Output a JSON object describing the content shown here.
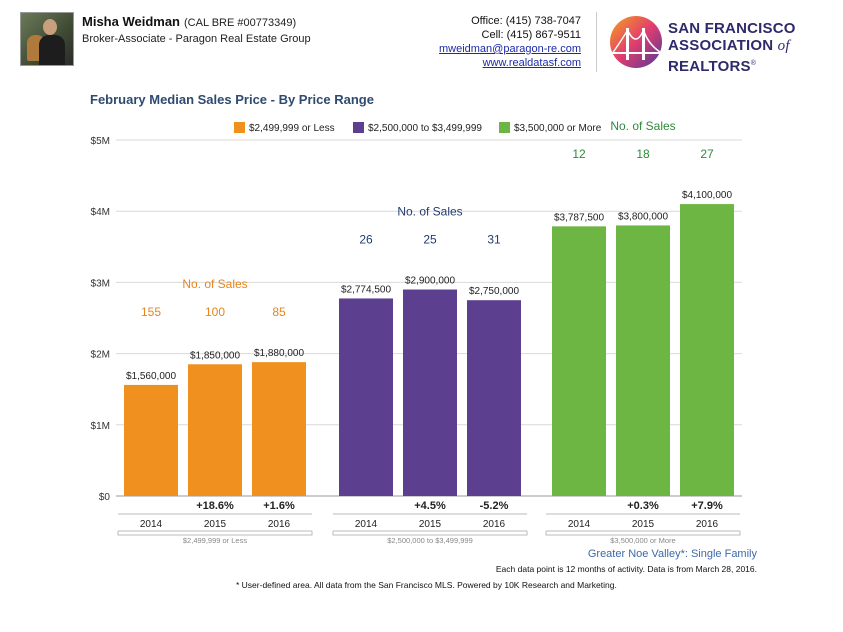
{
  "agent": {
    "name": "Misha Weidman",
    "bre": "(CAL BRE #00773349)",
    "title": "Broker-Associate - Paragon Real Estate Group"
  },
  "contact": {
    "office": "Office: (415) 738-7047",
    "cell": "Cell: (415) 867-9511",
    "email": "mweidman@paragon-re.com",
    "website": "www.realdatasf.com"
  },
  "logo": {
    "line1": "SAN FRANCISCO",
    "line2a": "ASSOCIATION ",
    "line2b": "of",
    "line2c": " REALTORS",
    "reg": "®"
  },
  "footer": {
    "area": "Greater Noe Valley*: Single Family",
    "note": "Each data point is 12 months of activity. Data is from March 28, 2016.",
    "disclaimer": "* User-defined area. All data from the San Francisco MLS. Powered by 10K Research and Marketing."
  },
  "chart_data": {
    "type": "bar",
    "title": "February Median Sales Price - By Price Range",
    "ylim": [
      0,
      5000000
    ],
    "yticks": [
      "$0",
      "$1M",
      "$2M",
      "$3M",
      "$4M",
      "$5M"
    ],
    "grid": true,
    "legend_position": "top",
    "sales_count_label": "No. of Sales",
    "groups": [
      {
        "name": "$2,499,999 or Less",
        "color": "#f0901e",
        "label_color": "#e8841a",
        "years": [
          "2014",
          "2015",
          "2016"
        ],
        "values": [
          1560000,
          1850000,
          1880000
        ],
        "value_labels": [
          "$1,560,000",
          "$1,850,000",
          "$1,880,000"
        ],
        "sales": [
          "155",
          "100",
          "85"
        ],
        "changes": [
          "",
          "+18.6%",
          "+1.6%"
        ]
      },
      {
        "name": "$2,500,000 to $3,499,999",
        "color": "#5c3f8f",
        "label_color": "#243a6e",
        "years": [
          "2014",
          "2015",
          "2016"
        ],
        "values": [
          2774500,
          2900000,
          2750000
        ],
        "value_labels": [
          "$2,774,500",
          "$2,900,000",
          "$2,750,000"
        ],
        "sales": [
          "26",
          "25",
          "31"
        ],
        "changes": [
          "",
          "+4.5%",
          "-5.2%"
        ]
      },
      {
        "name": "$3,500,000 or More",
        "color": "#6db644",
        "label_color": "#2f8a3a",
        "years": [
          "2014",
          "2015",
          "2016"
        ],
        "values": [
          3787500,
          3800000,
          4100000
        ],
        "value_labels": [
          "$3,787,500",
          "$3,800,000",
          "$4,100,000"
        ],
        "sales": [
          "12",
          "18",
          "27"
        ],
        "changes": [
          "",
          "+0.3%",
          "+7.9%"
        ]
      }
    ]
  }
}
